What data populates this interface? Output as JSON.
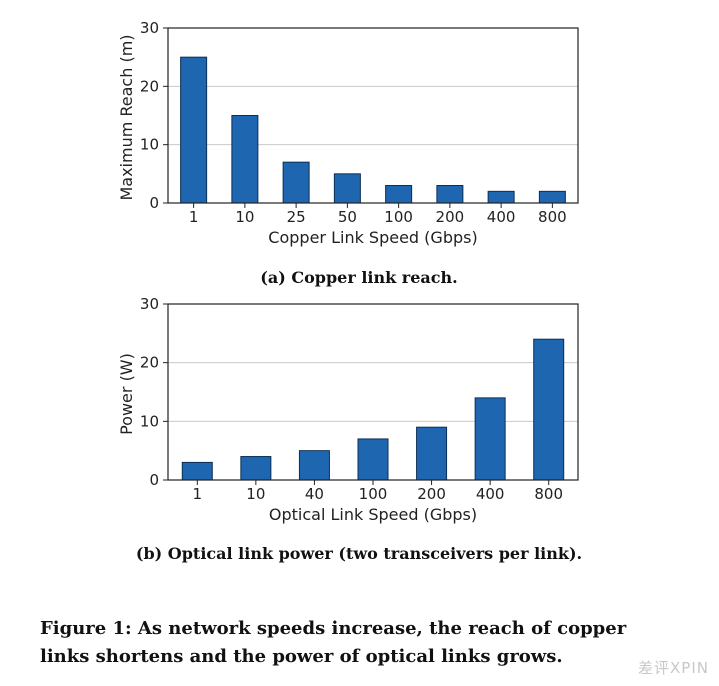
{
  "chart_data": [
    {
      "type": "bar",
      "title": "",
      "caption": "(a) Copper link reach.",
      "xlabel": "Copper Link Speed (Gbps)",
      "ylabel": "Maximum Reach (m)",
      "categories": [
        "1",
        "10",
        "25",
        "50",
        "100",
        "200",
        "400",
        "800"
      ],
      "values": [
        25,
        15,
        7,
        5,
        3,
        3,
        2,
        2
      ],
      "ylim": [
        0,
        30
      ],
      "yticks": [
        0,
        10,
        20,
        30
      ],
      "grid": true,
      "bar_color": "#1f66b0"
    },
    {
      "type": "bar",
      "title": "",
      "caption": "(b) Optical link power (two transceivers per link).",
      "xlabel": "Optical Link Speed (Gbps)",
      "ylabel": "Power (W)",
      "categories": [
        "1",
        "10",
        "40",
        "100",
        "200",
        "400",
        "800"
      ],
      "values": [
        3,
        4,
        5,
        7,
        9,
        14,
        24
      ],
      "ylim": [
        0,
        30
      ],
      "yticks": [
        0,
        10,
        20,
        30
      ],
      "grid": true,
      "bar_color": "#1f66b0"
    }
  ],
  "figure_caption": "Figure 1: As network speeds increase, the reach of copper links shortens and the power of optical links grows.",
  "watermark": "差评XPIN"
}
